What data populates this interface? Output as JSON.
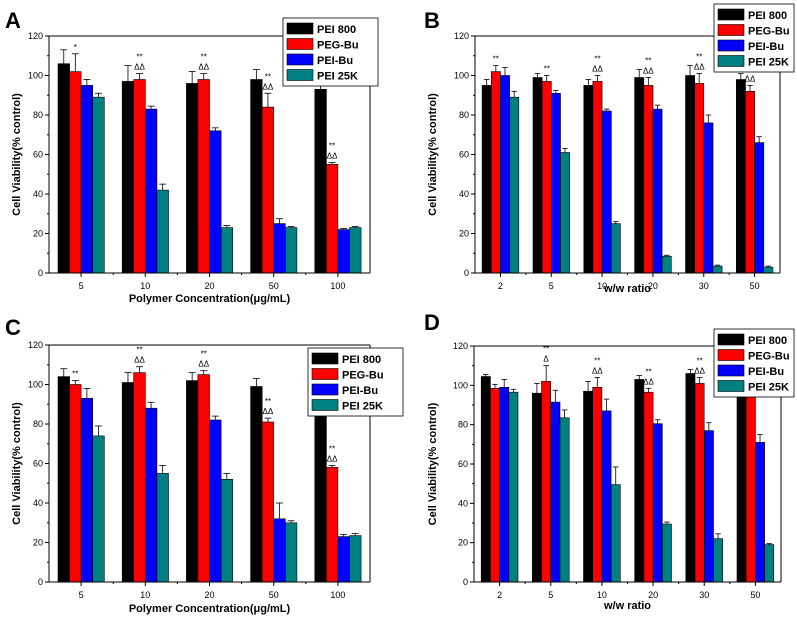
{
  "colors": {
    "PEI 800": "#000000",
    "PEG-Bu": "#ff0000",
    "PEI-Bu": "#0000ff",
    "PEI 25K": "#008080"
  },
  "chart_data": [
    {
      "panel": "A",
      "type": "bar",
      "xlabel": "Polymer Concentration(μg/mL)",
      "ylabel": "Cell Viability(% control)",
      "ylim": [
        0,
        120
      ],
      "yticks": [
        "0",
        "20",
        "40",
        "60",
        "80",
        "100",
        "120"
      ],
      "categories": [
        "5",
        "10",
        "20",
        "50",
        "100"
      ],
      "legend": [
        "PEI 800",
        "PEG-Bu",
        "PEI-Bu",
        "PEI 25K"
      ],
      "series": [
        {
          "name": "PEI 800",
          "values": [
            106,
            97,
            96,
            98,
            93
          ],
          "errors": [
            7,
            8,
            6,
            5,
            4
          ]
        },
        {
          "name": "PEG-Bu",
          "values": [
            102,
            98,
            98,
            84,
            55
          ],
          "errors": [
            9,
            3,
            3,
            7,
            1
          ]
        },
        {
          "name": "PEI-Bu",
          "values": [
            95,
            83,
            72,
            25,
            22
          ],
          "errors": [
            3,
            1.5,
            1.5,
            2.5,
            0.5
          ]
        },
        {
          "name": "PEI 25K",
          "values": [
            89,
            42,
            23,
            23,
            23
          ],
          "errors": [
            2,
            3,
            1,
            0.5,
            0.5
          ]
        }
      ],
      "annotations": [
        {
          "category": "5",
          "lines": [
            "*"
          ]
        },
        {
          "category": "10",
          "lines": [
            "**",
            "ΔΔ"
          ]
        },
        {
          "category": "20",
          "lines": [
            "**",
            "ΔΔ"
          ]
        },
        {
          "category": "50",
          "lines": [
            "**",
            "ΔΔ"
          ]
        },
        {
          "category": "100",
          "lines": [
            "**",
            "ΔΔ"
          ]
        }
      ]
    },
    {
      "panel": "B",
      "type": "bar",
      "xlabel": "w/w ratio",
      "ylabel": "Cell Viability(% control)",
      "ylim": [
        0,
        120
      ],
      "yticks": [
        "0",
        "20",
        "40",
        "60",
        "80",
        "100",
        "120"
      ],
      "categories": [
        "2",
        "5",
        "10",
        "20",
        "30",
        "50"
      ],
      "legend": [
        "PEI 800",
        "PEG-Bu",
        "PEI-Bu",
        "PEI 25K"
      ],
      "series": [
        {
          "name": "PEI 800",
          "values": [
            95,
            99,
            95,
            99,
            100,
            98
          ],
          "errors": [
            3,
            2,
            3,
            4,
            5,
            3
          ]
        },
        {
          "name": "PEG-Bu",
          "values": [
            102,
            97,
            97,
            95,
            96,
            92
          ],
          "errors": [
            3,
            3,
            3,
            4,
            5,
            3
          ]
        },
        {
          "name": "PEI-Bu",
          "values": [
            100,
            91,
            82,
            83,
            76,
            66
          ],
          "errors": [
            4,
            1.5,
            1,
            2,
            4,
            3
          ]
        },
        {
          "name": "PEI 25K",
          "values": [
            89,
            61,
            25,
            8.5,
            3.5,
            3
          ],
          "errors": [
            3,
            2,
            1,
            0.5,
            0.5,
            0.5
          ]
        }
      ],
      "annotations": [
        {
          "category": "2",
          "lines": [
            "**"
          ]
        },
        {
          "category": "5",
          "lines": [
            "**"
          ]
        },
        {
          "category": "10",
          "lines": [
            "**",
            "ΔΔ"
          ]
        },
        {
          "category": "20",
          "lines": [
            "**",
            "ΔΔ"
          ]
        },
        {
          "category": "30",
          "lines": [
            "**",
            "ΔΔ"
          ]
        },
        {
          "category": "50",
          "lines": [
            "**",
            "ΔΔ"
          ]
        }
      ]
    },
    {
      "panel": "C",
      "type": "bar",
      "xlabel": "Polymer Concentration(μg/mL)",
      "ylabel": "Cell Viability(% control)",
      "ylim": [
        0,
        120
      ],
      "yticks": [
        "0",
        "20",
        "40",
        "60",
        "80",
        "100",
        "120"
      ],
      "categories": [
        "5",
        "10",
        "20",
        "50",
        "100"
      ],
      "legend": [
        "PEI 800",
        "PEG-Bu",
        "PEI-Bu",
        "PEI 25K"
      ],
      "series": [
        {
          "name": "PEI 800",
          "values": [
            104,
            101,
            102,
            99,
            92
          ],
          "errors": [
            4,
            5,
            4,
            4,
            4
          ]
        },
        {
          "name": "PEG-Bu",
          "values": [
            100,
            106,
            105,
            81,
            58
          ],
          "errors": [
            2,
            3,
            2,
            2,
            1
          ]
        },
        {
          "name": "PEI-Bu",
          "values": [
            93,
            88,
            82,
            32,
            23
          ],
          "errors": [
            5,
            3,
            2,
            8,
            1
          ]
        },
        {
          "name": "PEI 25K",
          "values": [
            74,
            55,
            52,
            30,
            23.5
          ],
          "errors": [
            5,
            4,
            3,
            1,
            1
          ]
        }
      ],
      "annotations": [
        {
          "category": "5",
          "lines": [
            "**"
          ]
        },
        {
          "category": "10",
          "lines": [
            "**",
            "ΔΔ"
          ]
        },
        {
          "category": "20",
          "lines": [
            "**",
            "ΔΔ"
          ]
        },
        {
          "category": "50",
          "lines": [
            "**",
            "ΔΔ"
          ]
        },
        {
          "category": "100",
          "lines": [
            "**",
            "ΔΔ"
          ]
        }
      ]
    },
    {
      "panel": "D",
      "type": "bar",
      "xlabel": "w/w ratio",
      "ylabel": "Cell Viability(% control)",
      "ylim": [
        0,
        120
      ],
      "yticks": [
        "0",
        "20",
        "40",
        "60",
        "80",
        "100",
        "120"
      ],
      "categories": [
        "2",
        "5",
        "10",
        "20",
        "30",
        "50"
      ],
      "legend": [
        "PEI 800",
        "PEG-Bu",
        "PEI-Bu",
        "PEI 25K"
      ],
      "series": [
        {
          "name": "PEI 800",
          "values": [
            104.5,
            96,
            97,
            103,
            106,
            97
          ],
          "errors": [
            1,
            5,
            5,
            2,
            2,
            1
          ]
        },
        {
          "name": "PEG-Bu",
          "values": [
            98.5,
            102,
            99,
            96.5,
            101,
            95.5
          ],
          "errors": [
            2,
            8,
            5,
            2,
            3,
            1
          ]
        },
        {
          "name": "PEI-Bu",
          "values": [
            99,
            91.5,
            87,
            80.5,
            77,
            71
          ],
          "errors": [
            4,
            6,
            6,
            2,
            4,
            4
          ]
        },
        {
          "name": "PEI 25K",
          "values": [
            96.5,
            83.5,
            49.5,
            29.5,
            22,
            19
          ],
          "errors": [
            1.5,
            4,
            9,
            1,
            2.5,
            0.5
          ]
        }
      ],
      "annotations": [
        {
          "category": "5",
          "lines": [
            "**",
            "Δ"
          ]
        },
        {
          "category": "10",
          "lines": [
            "**",
            "ΔΔ"
          ]
        },
        {
          "category": "20",
          "lines": [
            "**",
            "ΔΔ"
          ]
        },
        {
          "category": "30",
          "lines": [
            "**",
            "ΔΔ"
          ]
        },
        {
          "category": "50",
          "lines": [
            "**",
            "ΔΔ"
          ]
        }
      ]
    }
  ]
}
